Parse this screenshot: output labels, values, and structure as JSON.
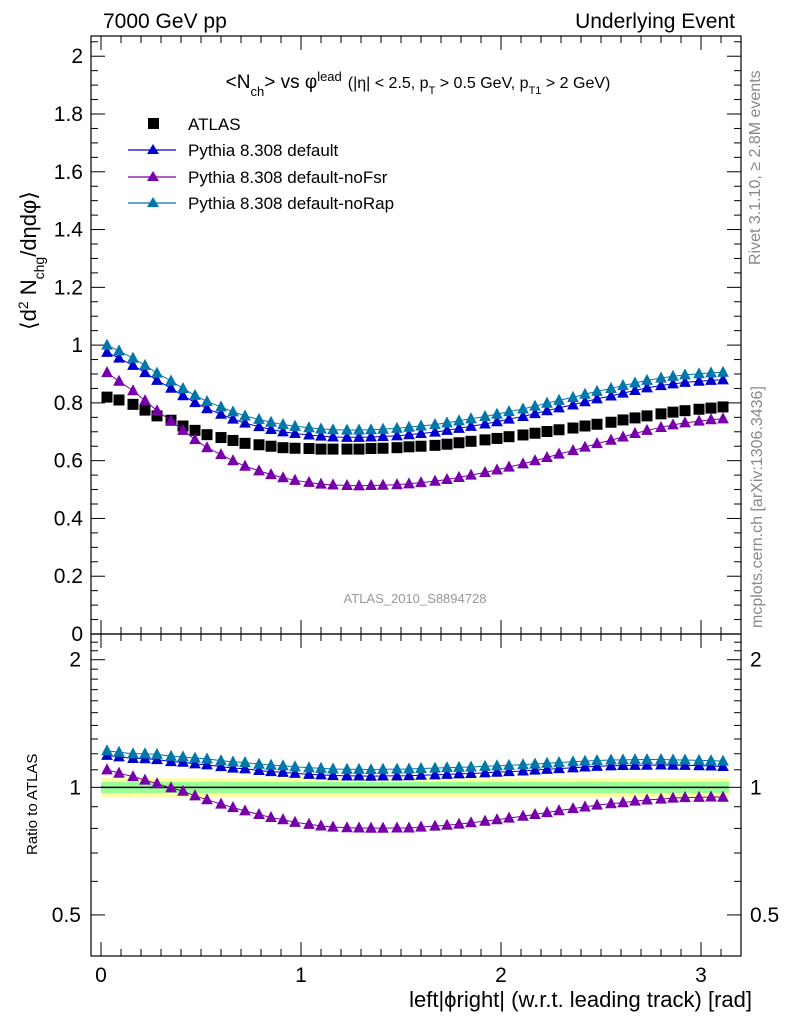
{
  "header": {
    "left": "7000 GeV pp",
    "right": "Underlying Event"
  },
  "side_text": {
    "rivet": "Rivet 3.1.10, ≥ 2.8M events",
    "mcplots": "mcplots.cern.ch [arXiv:1306.3436]"
  },
  "plot_title": {
    "main": "<N",
    "main_sub": "ch",
    "main_mid": "> vs φ",
    "main_sup": "lead",
    "cuts_a": "(|η| < 2.5, p",
    "cuts_a_sub": "T",
    "cuts_b": " > 0.5 GeV, p",
    "cuts_b_sub": "T1",
    "cuts_c": " > 2 GeV)"
  },
  "y_label": {
    "prefix": "⟨d",
    "sup": "2",
    "mid": " N",
    "sub": "chg",
    "suffix": "/dηdφ⟩"
  },
  "x_label": "left|ϕright| (w.r.t. leading track) [rad]",
  "ratio_label": "Ratio to ATLAS",
  "analysis_id": "ATLAS_2010_S8894728",
  "legend": {
    "atlas": "ATLAS",
    "default": "Pythia 8.308 default",
    "noFsr": "Pythia 8.308 default-noFsr",
    "noRap": "Pythia 8.308 default-noRap"
  },
  "colors": {
    "atlas": "#000000",
    "default": "#0000cc",
    "noFsr": "#7700aa",
    "noRap": "#0077aa",
    "band_inner": "#99ff99",
    "band_outer": "#ffff99"
  },
  "chart_data": [
    {
      "type": "scatter",
      "panel": "main",
      "xlim": [
        -0.05,
        3.2
      ],
      "ylim": [
        0,
        2.07
      ],
      "x_ticks": [
        0,
        1,
        2,
        3
      ],
      "y_ticks": [
        0,
        0.2,
        0.4,
        0.6,
        0.8,
        1,
        1.2,
        1.4,
        1.6,
        1.8,
        2
      ],
      "y_tick_labels": [
        "0",
        "0.2",
        "0.4",
        "0.6",
        "0.8",
        "1",
        "1.2",
        "1.4",
        "1.6",
        "1.8",
        "2"
      ],
      "x": [
        0.03,
        0.09,
        0.16,
        0.22,
        0.28,
        0.35,
        0.41,
        0.47,
        0.53,
        0.6,
        0.66,
        0.72,
        0.79,
        0.85,
        0.91,
        0.97,
        1.04,
        1.1,
        1.16,
        1.23,
        1.29,
        1.35,
        1.41,
        1.48,
        1.54,
        1.6,
        1.67,
        1.73,
        1.79,
        1.85,
        1.92,
        1.98,
        2.04,
        2.11,
        2.17,
        2.23,
        2.29,
        2.36,
        2.42,
        2.48,
        2.55,
        2.61,
        2.67,
        2.73,
        2.8,
        2.86,
        2.92,
        2.99,
        3.05,
        3.11
      ],
      "series": [
        {
          "name": "ATLAS",
          "marker": "square",
          "values": [
            0.82,
            0.81,
            0.795,
            0.775,
            0.755,
            0.74,
            0.72,
            0.705,
            0.69,
            0.68,
            0.67,
            0.66,
            0.655,
            0.65,
            0.645,
            0.643,
            0.642,
            0.64,
            0.64,
            0.64,
            0.64,
            0.642,
            0.643,
            0.645,
            0.648,
            0.65,
            0.653,
            0.657,
            0.662,
            0.667,
            0.672,
            0.677,
            0.683,
            0.689,
            0.695,
            0.701,
            0.707,
            0.713,
            0.72,
            0.726,
            0.733,
            0.741,
            0.748,
            0.755,
            0.762,
            0.768,
            0.773,
            0.778,
            0.782,
            0.786
          ]
        },
        {
          "name": "Pythia 8.308 default",
          "marker": "triangle",
          "values": [
            0.975,
            0.955,
            0.93,
            0.905,
            0.878,
            0.851,
            0.825,
            0.801,
            0.78,
            0.761,
            0.744,
            0.73,
            0.718,
            0.708,
            0.7,
            0.694,
            0.689,
            0.685,
            0.682,
            0.681,
            0.681,
            0.682,
            0.684,
            0.686,
            0.69,
            0.694,
            0.699,
            0.705,
            0.712,
            0.719,
            0.727,
            0.735,
            0.744,
            0.753,
            0.763,
            0.773,
            0.783,
            0.793,
            0.804,
            0.814,
            0.824,
            0.834,
            0.843,
            0.852,
            0.86,
            0.866,
            0.871,
            0.875,
            0.878,
            0.88
          ]
        },
        {
          "name": "Pythia 8.308 default-noFsr",
          "marker": "triangle",
          "values": [
            0.905,
            0.875,
            0.842,
            0.808,
            0.773,
            0.738,
            0.705,
            0.673,
            0.645,
            0.621,
            0.6,
            0.581,
            0.565,
            0.552,
            0.541,
            0.532,
            0.525,
            0.519,
            0.516,
            0.514,
            0.513,
            0.514,
            0.515,
            0.517,
            0.52,
            0.524,
            0.529,
            0.535,
            0.542,
            0.55,
            0.559,
            0.568,
            0.578,
            0.589,
            0.6,
            0.611,
            0.623,
            0.635,
            0.647,
            0.659,
            0.671,
            0.682,
            0.694,
            0.705,
            0.715,
            0.724,
            0.731,
            0.737,
            0.742,
            0.745
          ]
        },
        {
          "name": "Pythia 8.308 default-noRap",
          "marker": "triangle",
          "values": [
            1.0,
            0.98,
            0.955,
            0.93,
            0.903,
            0.876,
            0.85,
            0.826,
            0.805,
            0.786,
            0.769,
            0.755,
            0.743,
            0.733,
            0.725,
            0.719,
            0.714,
            0.71,
            0.707,
            0.706,
            0.706,
            0.707,
            0.709,
            0.712,
            0.716,
            0.72,
            0.725,
            0.731,
            0.738,
            0.745,
            0.753,
            0.761,
            0.77,
            0.779,
            0.789,
            0.799,
            0.809,
            0.819,
            0.83,
            0.84,
            0.85,
            0.86,
            0.869,
            0.878,
            0.886,
            0.892,
            0.897,
            0.901,
            0.904,
            0.906
          ]
        }
      ]
    },
    {
      "type": "scatter",
      "panel": "ratio",
      "ylabel": "Ratio to ATLAS",
      "xlabel": "left|ϕright| (w.r.t. leading track) [rad]",
      "xlim": [
        -0.05,
        3.2
      ],
      "ylim": [
        0.4,
        2.3
      ],
      "log_y": true,
      "x_ticks": [
        0,
        1,
        2,
        3
      ],
      "x_tick_labels": [
        "0",
        "1",
        "2",
        "3"
      ],
      "y_ticks": [
        0.5,
        1,
        2
      ],
      "y_tick_labels": [
        "0.5",
        "1",
        "2"
      ],
      "band": {
        "inner": [
          0.97,
          1.03
        ],
        "outer": [
          0.95,
          1.05
        ]
      },
      "x": [
        0.03,
        0.09,
        0.16,
        0.22,
        0.28,
        0.35,
        0.41,
        0.47,
        0.53,
        0.6,
        0.66,
        0.72,
        0.79,
        0.85,
        0.91,
        0.97,
        1.04,
        1.1,
        1.16,
        1.23,
        1.29,
        1.35,
        1.41,
        1.48,
        1.54,
        1.6,
        1.67,
        1.73,
        1.79,
        1.85,
        1.92,
        1.98,
        2.04,
        2.11,
        2.17,
        2.23,
        2.29,
        2.36,
        2.42,
        2.48,
        2.55,
        2.61,
        2.67,
        2.73,
        2.8,
        2.86,
        2.92,
        2.99,
        3.05,
        3.11
      ],
      "series": [
        {
          "name": "Pythia 8.308 default",
          "values": [
            1.19,
            1.18,
            1.17,
            1.168,
            1.163,
            1.15,
            1.146,
            1.136,
            1.13,
            1.119,
            1.11,
            1.106,
            1.096,
            1.089,
            1.085,
            1.079,
            1.073,
            1.07,
            1.066,
            1.064,
            1.064,
            1.062,
            1.064,
            1.064,
            1.065,
            1.068,
            1.07,
            1.073,
            1.076,
            1.078,
            1.082,
            1.086,
            1.089,
            1.093,
            1.098,
            1.103,
            1.107,
            1.112,
            1.117,
            1.121,
            1.124,
            1.126,
            1.127,
            1.128,
            1.129,
            1.128,
            1.127,
            1.125,
            1.123,
            1.12
          ]
        },
        {
          "name": "Pythia 8.308 default-noFsr",
          "values": [
            1.1,
            1.08,
            1.06,
            1.04,
            1.02,
            0.997,
            0.979,
            0.955,
            0.935,
            0.913,
            0.896,
            0.88,
            0.863,
            0.849,
            0.839,
            0.827,
            0.818,
            0.811,
            0.806,
            0.803,
            0.802,
            0.801,
            0.801,
            0.802,
            0.802,
            0.806,
            0.81,
            0.814,
            0.819,
            0.825,
            0.832,
            0.839,
            0.846,
            0.855,
            0.863,
            0.872,
            0.881,
            0.891,
            0.899,
            0.908,
            0.915,
            0.92,
            0.928,
            0.934,
            0.938,
            0.943,
            0.946,
            0.947,
            0.949,
            0.948
          ]
        },
        {
          "name": "Pythia 8.308 default-noRap",
          "values": [
            1.22,
            1.21,
            1.2,
            1.2,
            1.196,
            1.184,
            1.18,
            1.172,
            1.167,
            1.156,
            1.148,
            1.144,
            1.134,
            1.128,
            1.124,
            1.118,
            1.112,
            1.109,
            1.105,
            1.103,
            1.103,
            1.101,
            1.103,
            1.104,
            1.105,
            1.108,
            1.11,
            1.113,
            1.115,
            1.117,
            1.121,
            1.124,
            1.127,
            1.131,
            1.135,
            1.14,
            1.144,
            1.149,
            1.153,
            1.157,
            1.16,
            1.161,
            1.162,
            1.163,
            1.163,
            1.161,
            1.16,
            1.158,
            1.156,
            1.153
          ]
        }
      ]
    }
  ]
}
